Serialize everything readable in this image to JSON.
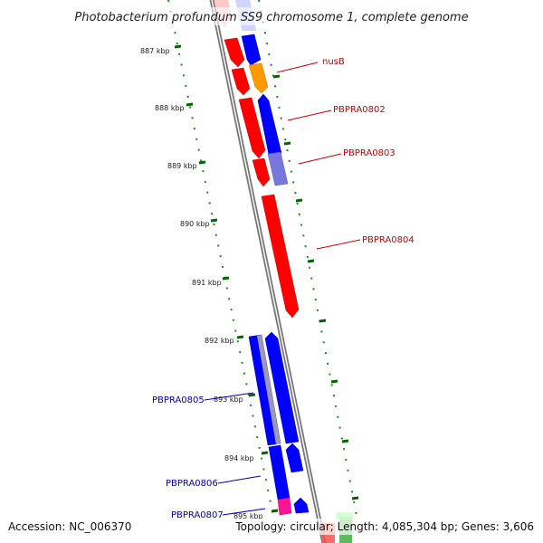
{
  "title": "Photobacterium profundum SS9 chromosome 1, complete genome",
  "accession": "Accession: NC_006370",
  "summary": "Topology: circular; Length: 4,085,304 bp; Genes: 3,606",
  "ticks": [
    "887 kbp",
    "888 kbp",
    "889 kbp",
    "890 kbp",
    "891 kbp",
    "892 kbp",
    "893 kbp",
    "894 kbp",
    "895 kbp"
  ],
  "gene_labels": {
    "nusB": "nusB",
    "pbpra0802": "PBPRA0802",
    "pbpra0803": "PBPRA0803",
    "pbpra0804": "PBPRA0804",
    "pbpra0805": "PBPRA0805",
    "pbpra0806": "PBPRA0806",
    "pbpra0807": "PBPRA0807"
  },
  "colors": {
    "forward_gene": "#ff0000",
    "reverse_gene": "#0000ff",
    "forward_label": "#cc0000",
    "reverse_label": "#0000aa",
    "tick": "#006600",
    "backbone": "#888888",
    "orange_feature": "#ff9900",
    "purple_feature": "#7777dd",
    "pink_feature": "#ff1493"
  }
}
